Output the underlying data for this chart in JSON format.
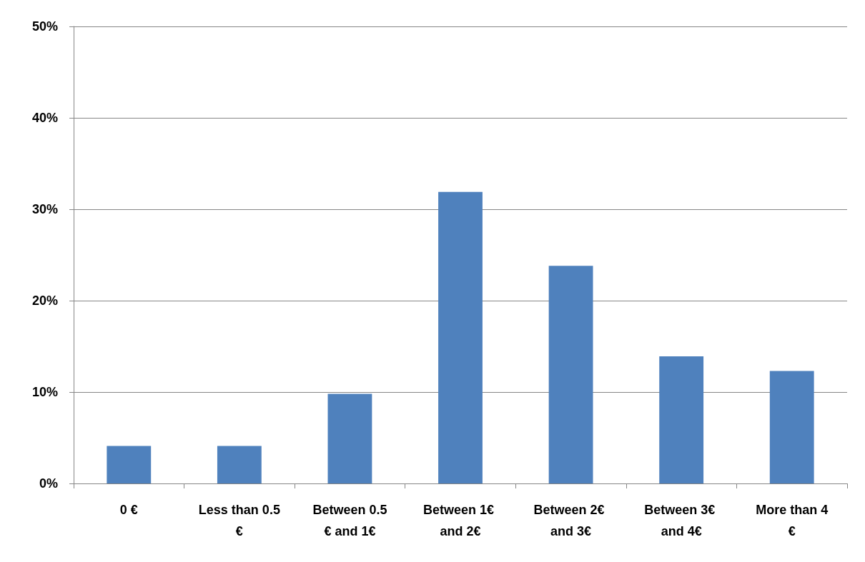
{
  "chart_data": {
    "type": "bar",
    "categories": [
      "0 €",
      "Less than 0.5€",
      "Between 0.5€ and 1€",
      "Between 1€ and 2€",
      "Between 2€ and 3€",
      "Between 3€ and 4€",
      "More than 4€"
    ],
    "values": [
      4.1,
      4.1,
      9.8,
      31.9,
      23.8,
      13.9,
      12.3
    ],
    "color": "#4f81bd",
    "ylim": [
      0,
      50
    ],
    "yticks": [
      {
        "value": 0,
        "label": "0%"
      },
      {
        "value": 10,
        "label": "10%"
      },
      {
        "value": 20,
        "label": "20%"
      },
      {
        "value": 30,
        "label": "30%"
      },
      {
        "value": 40,
        "label": "40%"
      },
      {
        "value": 50,
        "label": "50%"
      }
    ],
    "grid": "y"
  }
}
